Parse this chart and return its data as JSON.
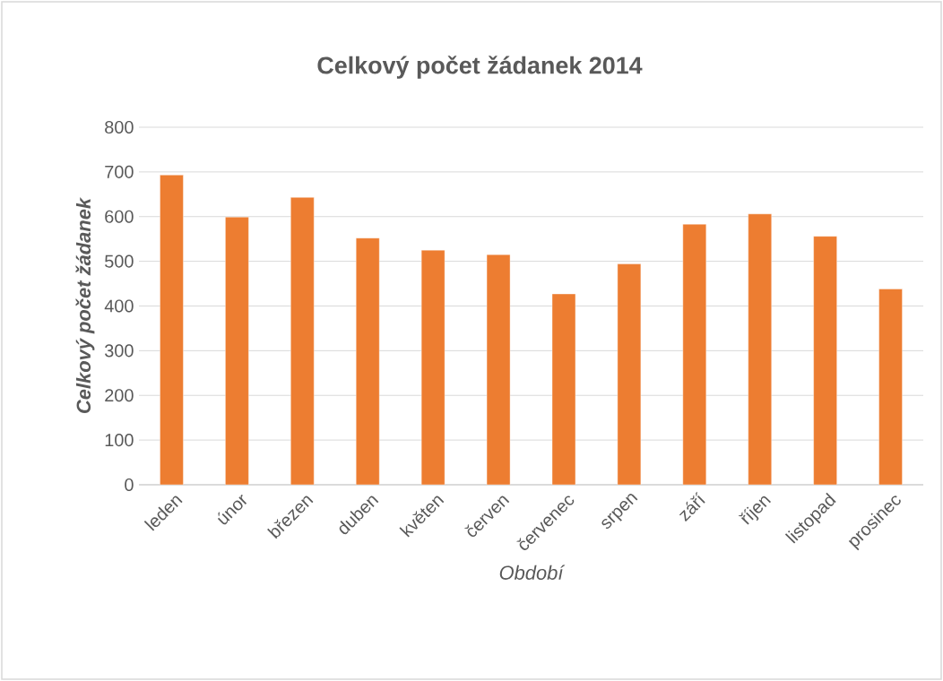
{
  "chart_data": {
    "type": "bar",
    "title": "Celkový počet žádanek 2014",
    "xlabel": "Období",
    "ylabel": "Celkový počet  žádanek",
    "categories": [
      "leden",
      "únor",
      "březen",
      "duben",
      "květen",
      "červen",
      "červenec",
      "srpen",
      "září",
      "říjen",
      "listopad",
      "prosinec"
    ],
    "values": [
      693,
      599,
      643,
      552,
      525,
      515,
      427,
      494,
      583,
      606,
      556,
      438
    ],
    "color": "#ed7d31",
    "ylim": [
      0,
      800
    ],
    "yticks": [
      0,
      100,
      200,
      300,
      400,
      500,
      600,
      700,
      800
    ],
    "grid": "y"
  }
}
